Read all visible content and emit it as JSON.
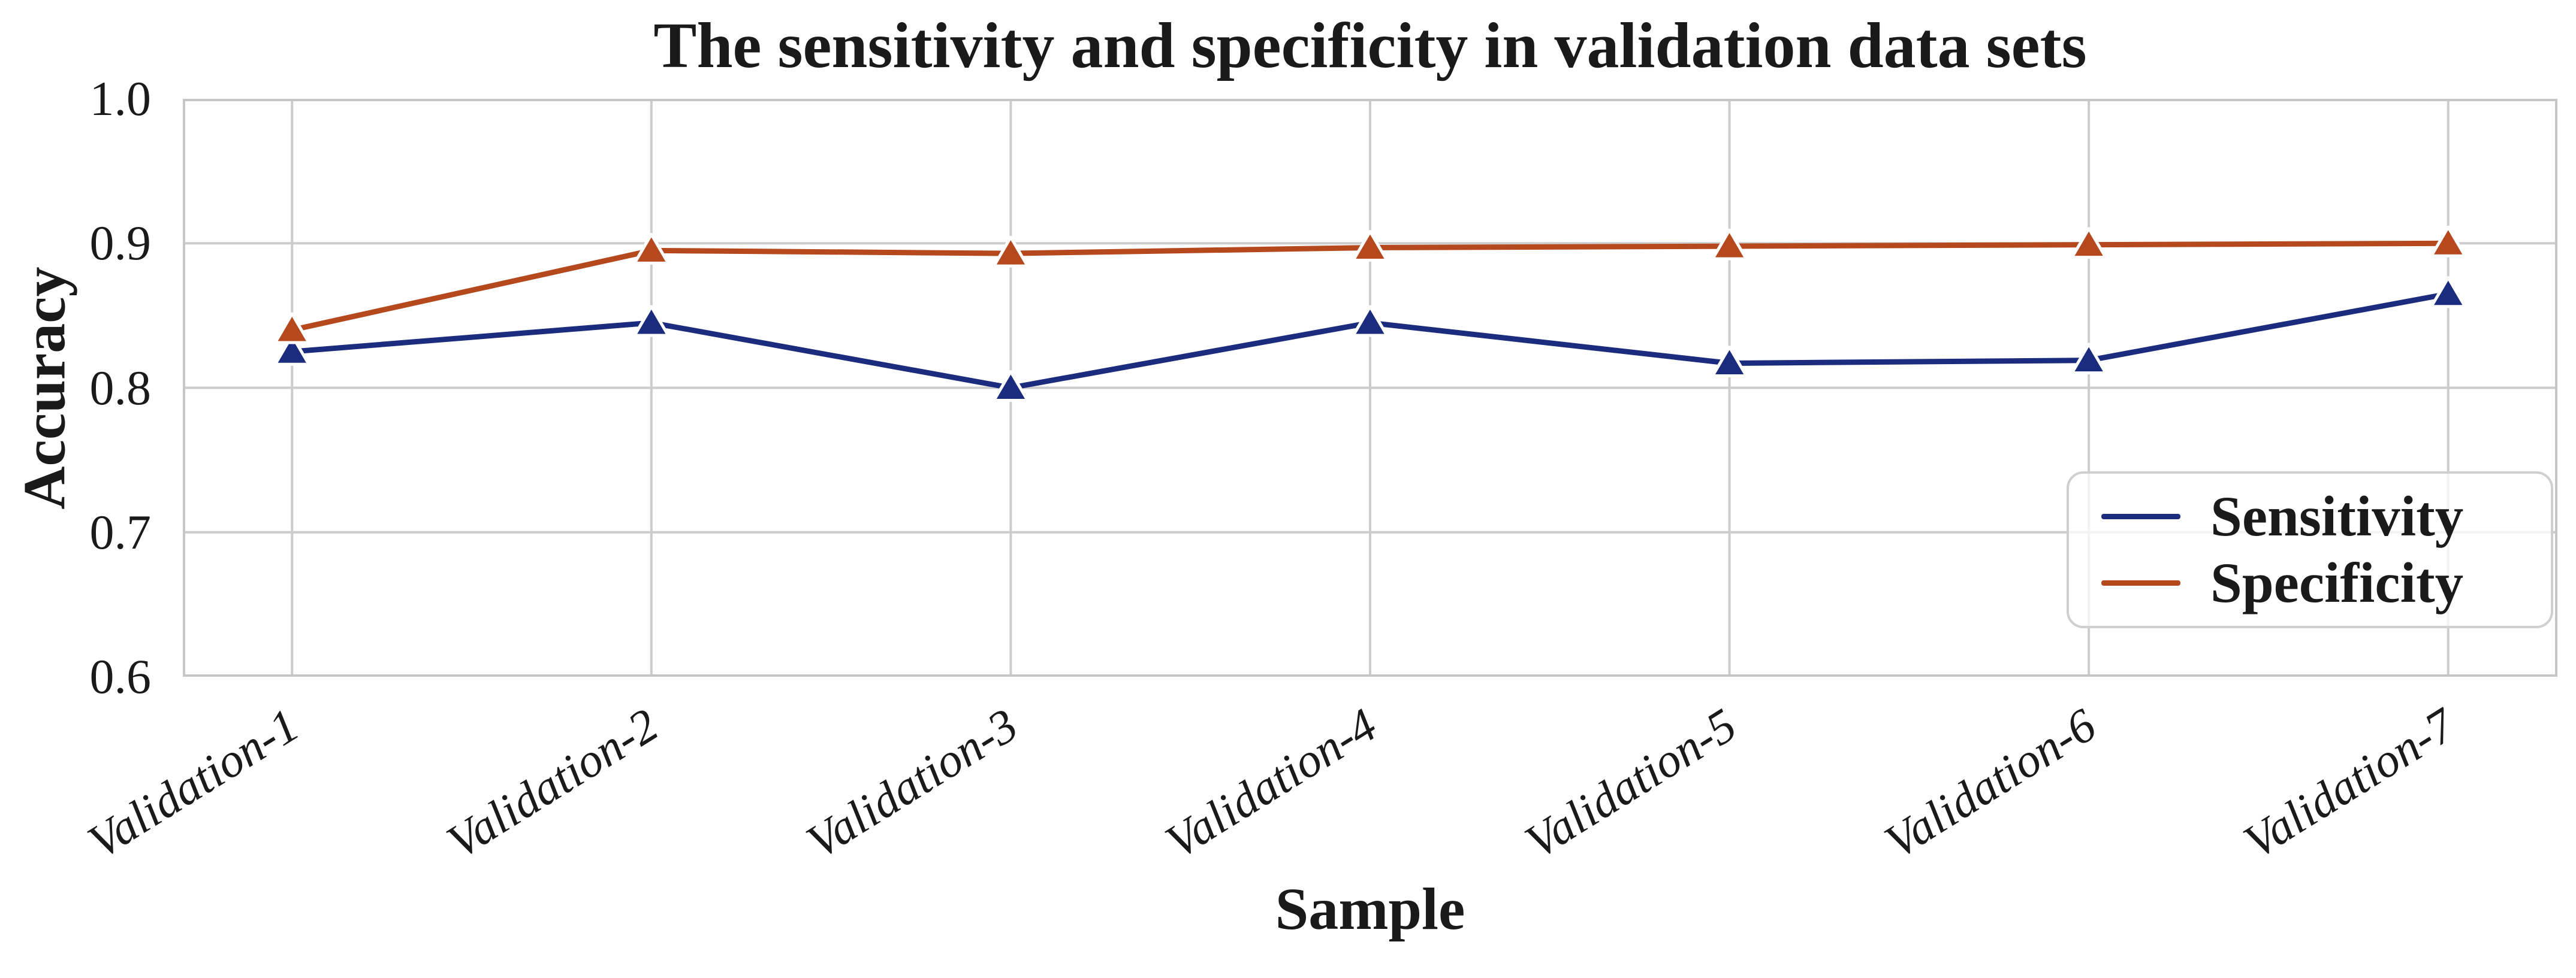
{
  "chart_data": {
    "type": "line",
    "title": "The sensitivity and specificity in validation data sets",
    "xlabel": "Sample",
    "ylabel": "Accuracy",
    "categories": [
      "Validation-1",
      "Validation-2",
      "Validation-3",
      "Validation-4",
      "Validation-5",
      "Validation-6",
      "Validation-7"
    ],
    "series": [
      {
        "name": "Sensitivity",
        "color": "#1B2C7E",
        "marker": "triangle-up",
        "values": [
          0.825,
          0.845,
          0.8,
          0.845,
          0.817,
          0.819,
          0.865
        ]
      },
      {
        "name": "Specificity",
        "color": "#B5491D",
        "marker": "triangle-up",
        "values": [
          0.84,
          0.895,
          0.893,
          0.897,
          0.898,
          0.899,
          0.9
        ]
      }
    ],
    "ylim": [
      0.6,
      1.0
    ],
    "yticks": [
      1.0,
      0.9,
      0.8,
      0.7,
      0.6
    ],
    "ytick_labels": [
      "1.0",
      "0.9",
      "0.8",
      "0.7",
      "0.6"
    ],
    "grid": true,
    "grid_color": "#cccccc",
    "frame_color": "#c6c6c6",
    "background": "#ffffff",
    "text_color": "#1a1a1a",
    "legend_position": "lower right",
    "marker_edge_color": "#ffffff"
  }
}
